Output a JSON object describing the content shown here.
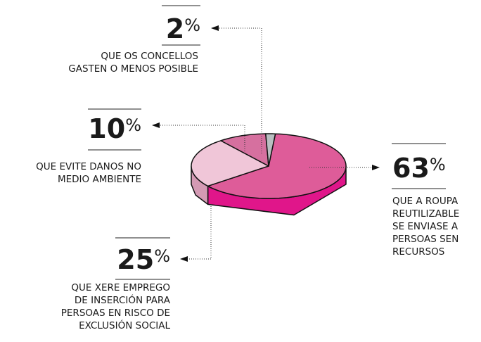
{
  "chart_data": {
    "type": "pie3d",
    "categories": [
      [
        "QUE A ROUPA",
        "REUTILIZABLE",
        "SE ENVIASE A",
        "PERSOAS SEN",
        "RECURSOS"
      ],
      [
        "QUE XERE EMPREGO",
        "DE INSERCIÓN PARA",
        "PERSOAS EN RISCO DE",
        "EXCLUSIÓN SOCIAL"
      ],
      [
        "QUE EVITE DANOS NO",
        "MEDIO AMBIENTE"
      ],
      [
        "QUE OS CONCELLOS",
        "GASTEN O MENOS POSIBLE"
      ]
    ],
    "values": [
      63,
      25,
      10,
      2
    ],
    "unit": "%",
    "colors": [
      "#de5c99",
      "#f0c6d8",
      "#d6709f",
      "#b9bfc1"
    ],
    "side_colors": [
      "#e0168a",
      "#d49ab4",
      "#b8558a",
      "#8e9496"
    ]
  }
}
